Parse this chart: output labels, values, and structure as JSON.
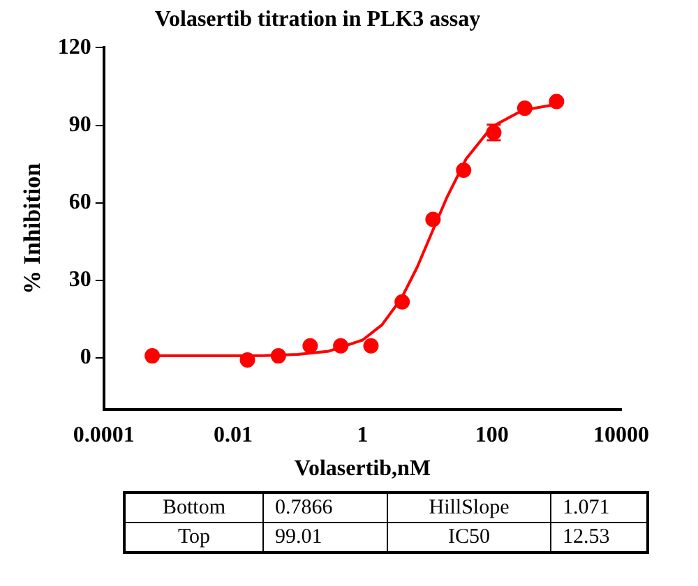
{
  "chart_data": {
    "type": "scatter",
    "title": "Volasertib titration in PLK3 assay",
    "xlabel": "Volasertib,nM",
    "ylabel": "% Inhibition",
    "log": "x",
    "xlim": [
      0.0001,
      10000
    ],
    "xticks": [
      0.0001,
      0.01,
      1,
      100,
      10000
    ],
    "ylim": [
      -20,
      120
    ],
    "yticks": [
      0,
      30,
      60,
      90,
      120
    ],
    "grid": false,
    "legend": false,
    "series": [
      {
        "color": "#ff0000",
        "marker": "circle",
        "x": [
          0.00056,
          0.0166,
          0.05,
          0.155,
          0.46,
          1.35,
          4.1,
          12.3,
          36.6,
          107,
          323,
          1000
        ],
        "values": [
          0.8,
          -0.8,
          0.8,
          4.7,
          4.7,
          4.7,
          21.7,
          53.6,
          72.6,
          87.2,
          96.6,
          99.2
        ],
        "errors": [
          null,
          null,
          null,
          null,
          null,
          null,
          null,
          null,
          null,
          3,
          null,
          null
        ]
      },
      {
        "type": "line",
        "color": "#ff0000",
        "marker": "none",
        "line_style": "solid",
        "x": [
          0.0005,
          0.01,
          0.03,
          0.1,
          0.3,
          1,
          2,
          4,
          7,
          12.53,
          20,
          40,
          100,
          300,
          1000
        ],
        "values": [
          0.8,
          0.8,
          0.9,
          1.4,
          2.6,
          6.9,
          12.8,
          23.1,
          35.1,
          50,
          61.9,
          77,
          89.4,
          95.8,
          98.1
        ]
      }
    ],
    "annotations": [
      "Bottom",
      "0.7866",
      "HillSlope",
      "1.071",
      "Top",
      "99.01",
      "IC50",
      "12.53"
    ]
  }
}
